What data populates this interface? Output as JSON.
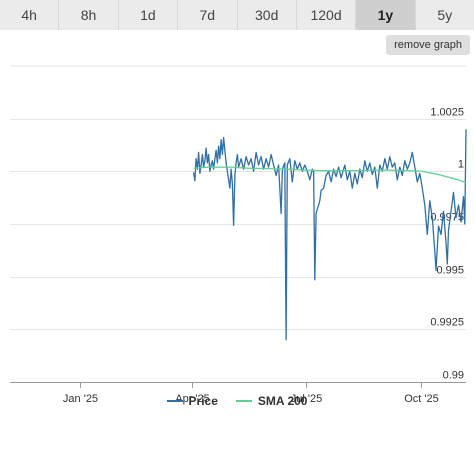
{
  "tabs": [
    {
      "label": "4h",
      "active": false
    },
    {
      "label": "8h",
      "active": false
    },
    {
      "label": "1d",
      "active": false
    },
    {
      "label": "7d",
      "active": false
    },
    {
      "label": "30d",
      "active": false
    },
    {
      "label": "120d",
      "active": false
    },
    {
      "label": "1y",
      "active": true
    },
    {
      "label": "5y",
      "active": false
    }
  ],
  "remove_graph_label": "remove graph",
  "colors": {
    "price": "#2f6fa3",
    "sma": "#5ecf96",
    "grid": "#e6e6e6",
    "axis": "#999999"
  },
  "chart_data": {
    "type": "line",
    "x_axis": {
      "type": "date",
      "range": [
        "2024-11-06",
        "2025-11-06"
      ],
      "ticks": [
        {
          "label": "Jan '25",
          "date": "2025-01-01"
        },
        {
          "label": "Apr '25",
          "date": "2025-04-01"
        },
        {
          "label": "Jul '25",
          "date": "2025-07-01"
        },
        {
          "label": "Oct '25",
          "date": "2025-10-01"
        }
      ]
    },
    "y_axis": {
      "range": [
        0.99,
        1.005
      ],
      "ticks": [
        {
          "label": "1.0025",
          "value": 1.0025
        },
        {
          "label": "1",
          "value": 1.0
        },
        {
          "label": "0.9975",
          "value": 0.9975
        },
        {
          "label": "0.995",
          "value": 0.995
        },
        {
          "label": "0.9925",
          "value": 0.9925
        },
        {
          "label": "0.99",
          "value": 0.99
        }
      ]
    },
    "grid": true,
    "legend_position": "bottom-center",
    "series": [
      {
        "name": "Price",
        "points": [
          [
            "2025-04-02",
            0.99995
          ],
          [
            "2025-04-03",
            0.99955
          ],
          [
            "2025-04-04",
            1.0006
          ],
          [
            "2025-04-05",
            1.0001
          ],
          [
            "2025-04-06",
            1.0009
          ],
          [
            "2025-04-07",
            0.9999
          ],
          [
            "2025-04-08",
            1.0003
          ],
          [
            "2025-04-09",
            1.0008
          ],
          [
            "2025-04-10",
            1.0002
          ],
          [
            "2025-04-11",
            1.0005
          ],
          [
            "2025-04-12",
            1.0011
          ],
          [
            "2025-04-13",
            1.0004
          ],
          [
            "2025-04-14",
            1.0008
          ],
          [
            "2025-04-15",
            1.0
          ],
          [
            "2025-04-16",
            1.0003
          ],
          [
            "2025-04-17",
            1.0005
          ],
          [
            "2025-04-18",
            1.0001
          ],
          [
            "2025-04-19",
            1.0006
          ],
          [
            "2025-04-20",
            1.001
          ],
          [
            "2025-04-21",
            1.0004
          ],
          [
            "2025-04-22",
            1.0012
          ],
          [
            "2025-04-23",
            1.0006
          ],
          [
            "2025-04-24",
            1.0015
          ],
          [
            "2025-04-25",
            1.0008
          ],
          [
            "2025-04-26",
            1.0016
          ],
          [
            "2025-04-27",
            1.001
          ],
          [
            "2025-04-28",
            1.0004
          ],
          [
            "2025-04-29",
            1.0
          ],
          [
            "2025-04-30",
            0.9996
          ],
          [
            "2025-05-01",
            0.9992
          ],
          [
            "2025-05-02",
            1.0001
          ],
          [
            "2025-05-03",
            0.9994
          ],
          [
            "2025-05-04",
            0.99744
          ],
          [
            "2025-05-05",
            0.9998
          ],
          [
            "2025-05-06",
            1.0004
          ],
          [
            "2025-05-07",
            1.0008
          ],
          [
            "2025-05-08",
            1.0002
          ],
          [
            "2025-05-10",
            1.0006
          ],
          [
            "2025-05-12",
            1.0001
          ],
          [
            "2025-05-14",
            1.0007
          ],
          [
            "2025-05-16",
            1.0003
          ],
          [
            "2025-05-18",
            1.0006
          ],
          [
            "2025-05-20",
            1.0
          ],
          [
            "2025-05-22",
            1.0009
          ],
          [
            "2025-05-24",
            1.0003
          ],
          [
            "2025-05-26",
            1.0007
          ],
          [
            "2025-05-28",
            1.0001
          ],
          [
            "2025-05-30",
            1.0006
          ],
          [
            "2025-06-01",
            1.0002
          ],
          [
            "2025-06-03",
            1.0008
          ],
          [
            "2025-06-05",
            1.0003
          ],
          [
            "2025-06-07",
            0.9998
          ],
          [
            "2025-06-09",
            1.0003
          ],
          [
            "2025-06-11",
            0.998
          ],
          [
            "2025-06-12",
            1.0001
          ],
          [
            "2025-06-14",
            1.0004
          ],
          [
            "2025-06-15",
            0.992
          ],
          [
            "2025-06-16",
            1.0003
          ],
          [
            "2025-06-18",
            1.0006
          ],
          [
            "2025-06-20",
            0.9995
          ],
          [
            "2025-06-22",
            1.0005
          ],
          [
            "2025-06-24",
            1.0001
          ],
          [
            "2025-06-26",
            1.0004
          ],
          [
            "2025-06-28",
            1.0
          ],
          [
            "2025-06-30",
            1.0003
          ],
          [
            "2025-07-02",
            1.0
          ],
          [
            "2025-07-04",
            0.9996
          ],
          [
            "2025-07-06",
            1.0001
          ],
          [
            "2025-07-07",
            1.0
          ],
          [
            "2025-07-08",
            0.99485
          ],
          [
            "2025-07-09",
            0.998
          ],
          [
            "2025-07-10",
            0.9982
          ],
          [
            "2025-07-12",
            0.9986
          ],
          [
            "2025-07-13",
            0.9991
          ],
          [
            "2025-07-15",
            0.9992
          ],
          [
            "2025-07-17",
            0.9998
          ],
          [
            "2025-07-19",
            1.0
          ],
          [
            "2025-07-21",
            0.9995
          ],
          [
            "2025-07-23",
            1.0001
          ],
          [
            "2025-07-25",
            0.99975
          ],
          [
            "2025-07-27",
            1.0002
          ],
          [
            "2025-07-29",
            0.9997
          ],
          [
            "2025-08-01",
            1.0003
          ],
          [
            "2025-08-03",
            0.9996
          ],
          [
            "2025-08-05",
            1.0
          ],
          [
            "2025-08-07",
            0.9992
          ],
          [
            "2025-08-09",
            0.9999
          ],
          [
            "2025-08-11",
            0.9994
          ],
          [
            "2025-08-13",
            1.0001
          ],
          [
            "2025-08-15",
            0.9997
          ],
          [
            "2025-08-17",
            1.0005
          ],
          [
            "2025-08-19",
            1.0
          ],
          [
            "2025-08-21",
            1.0004
          ],
          [
            "2025-08-23",
            0.99985
          ],
          [
            "2025-08-25",
            1.0002
          ],
          [
            "2025-08-27",
            0.9992
          ],
          [
            "2025-08-29",
            1.0003
          ],
          [
            "2025-08-31",
            1.0
          ],
          [
            "2025-09-02",
            1.0006
          ],
          [
            "2025-09-04",
            1.0001
          ],
          [
            "2025-09-06",
            1.0007
          ],
          [
            "2025-09-08",
            1.0002
          ],
          [
            "2025-09-10",
            1.0004
          ],
          [
            "2025-09-12",
            0.9996
          ],
          [
            "2025-09-14",
            1.0002
          ],
          [
            "2025-09-16",
            0.9998
          ],
          [
            "2025-09-18",
            1.0005
          ],
          [
            "2025-09-20",
            1.0001
          ],
          [
            "2025-09-22",
            1.0004
          ],
          [
            "2025-09-24",
            1.0009
          ],
          [
            "2025-09-26",
            1.0002
          ],
          [
            "2025-09-28",
            0.9995
          ],
          [
            "2025-09-30",
            0.9999
          ],
          [
            "2025-10-02",
            0.9992
          ],
          [
            "2025-10-04",
            0.9984
          ],
          [
            "2025-10-06",
            0.997
          ],
          [
            "2025-10-08",
            0.9986
          ],
          [
            "2025-10-10",
            0.9978
          ],
          [
            "2025-10-12",
            0.9962
          ],
          [
            "2025-10-13",
            0.9953
          ],
          [
            "2025-10-14",
            0.9964
          ],
          [
            "2025-10-15",
            0.9974
          ],
          [
            "2025-10-17",
            0.997
          ],
          [
            "2025-10-19",
            0.9981
          ],
          [
            "2025-10-21",
            0.9966
          ],
          [
            "2025-10-22",
            0.9956
          ],
          [
            "2025-10-23",
            0.9972
          ],
          [
            "2025-10-25",
            0.9981
          ],
          [
            "2025-10-27",
            0.999
          ],
          [
            "2025-10-29",
            0.9978
          ],
          [
            "2025-10-31",
            0.9984
          ],
          [
            "2025-11-02",
            0.9976
          ],
          [
            "2025-11-04",
            0.9988
          ],
          [
            "2025-11-05",
            0.9975
          ],
          [
            "2025-11-06",
            1.002
          ]
        ]
      },
      {
        "name": "SMA 200",
        "points": [
          [
            "2025-04-02",
            1.00015
          ],
          [
            "2025-04-15",
            1.0002
          ],
          [
            "2025-05-01",
            1.0002
          ],
          [
            "2025-05-15",
            1.00015
          ],
          [
            "2025-06-01",
            1.00013
          ],
          [
            "2025-06-15",
            1.0001
          ],
          [
            "2025-07-01",
            1.00006
          ],
          [
            "2025-07-15",
            1.00003
          ],
          [
            "2025-08-01",
            1.00003
          ],
          [
            "2025-08-15",
            1.00004
          ],
          [
            "2025-09-01",
            1.00006
          ],
          [
            "2025-09-15",
            1.00004
          ],
          [
            "2025-10-01",
            1.00001
          ],
          [
            "2025-10-15",
            0.99985
          ],
          [
            "2025-11-01",
            0.99958
          ],
          [
            "2025-11-06",
            0.99945
          ]
        ]
      }
    ]
  }
}
